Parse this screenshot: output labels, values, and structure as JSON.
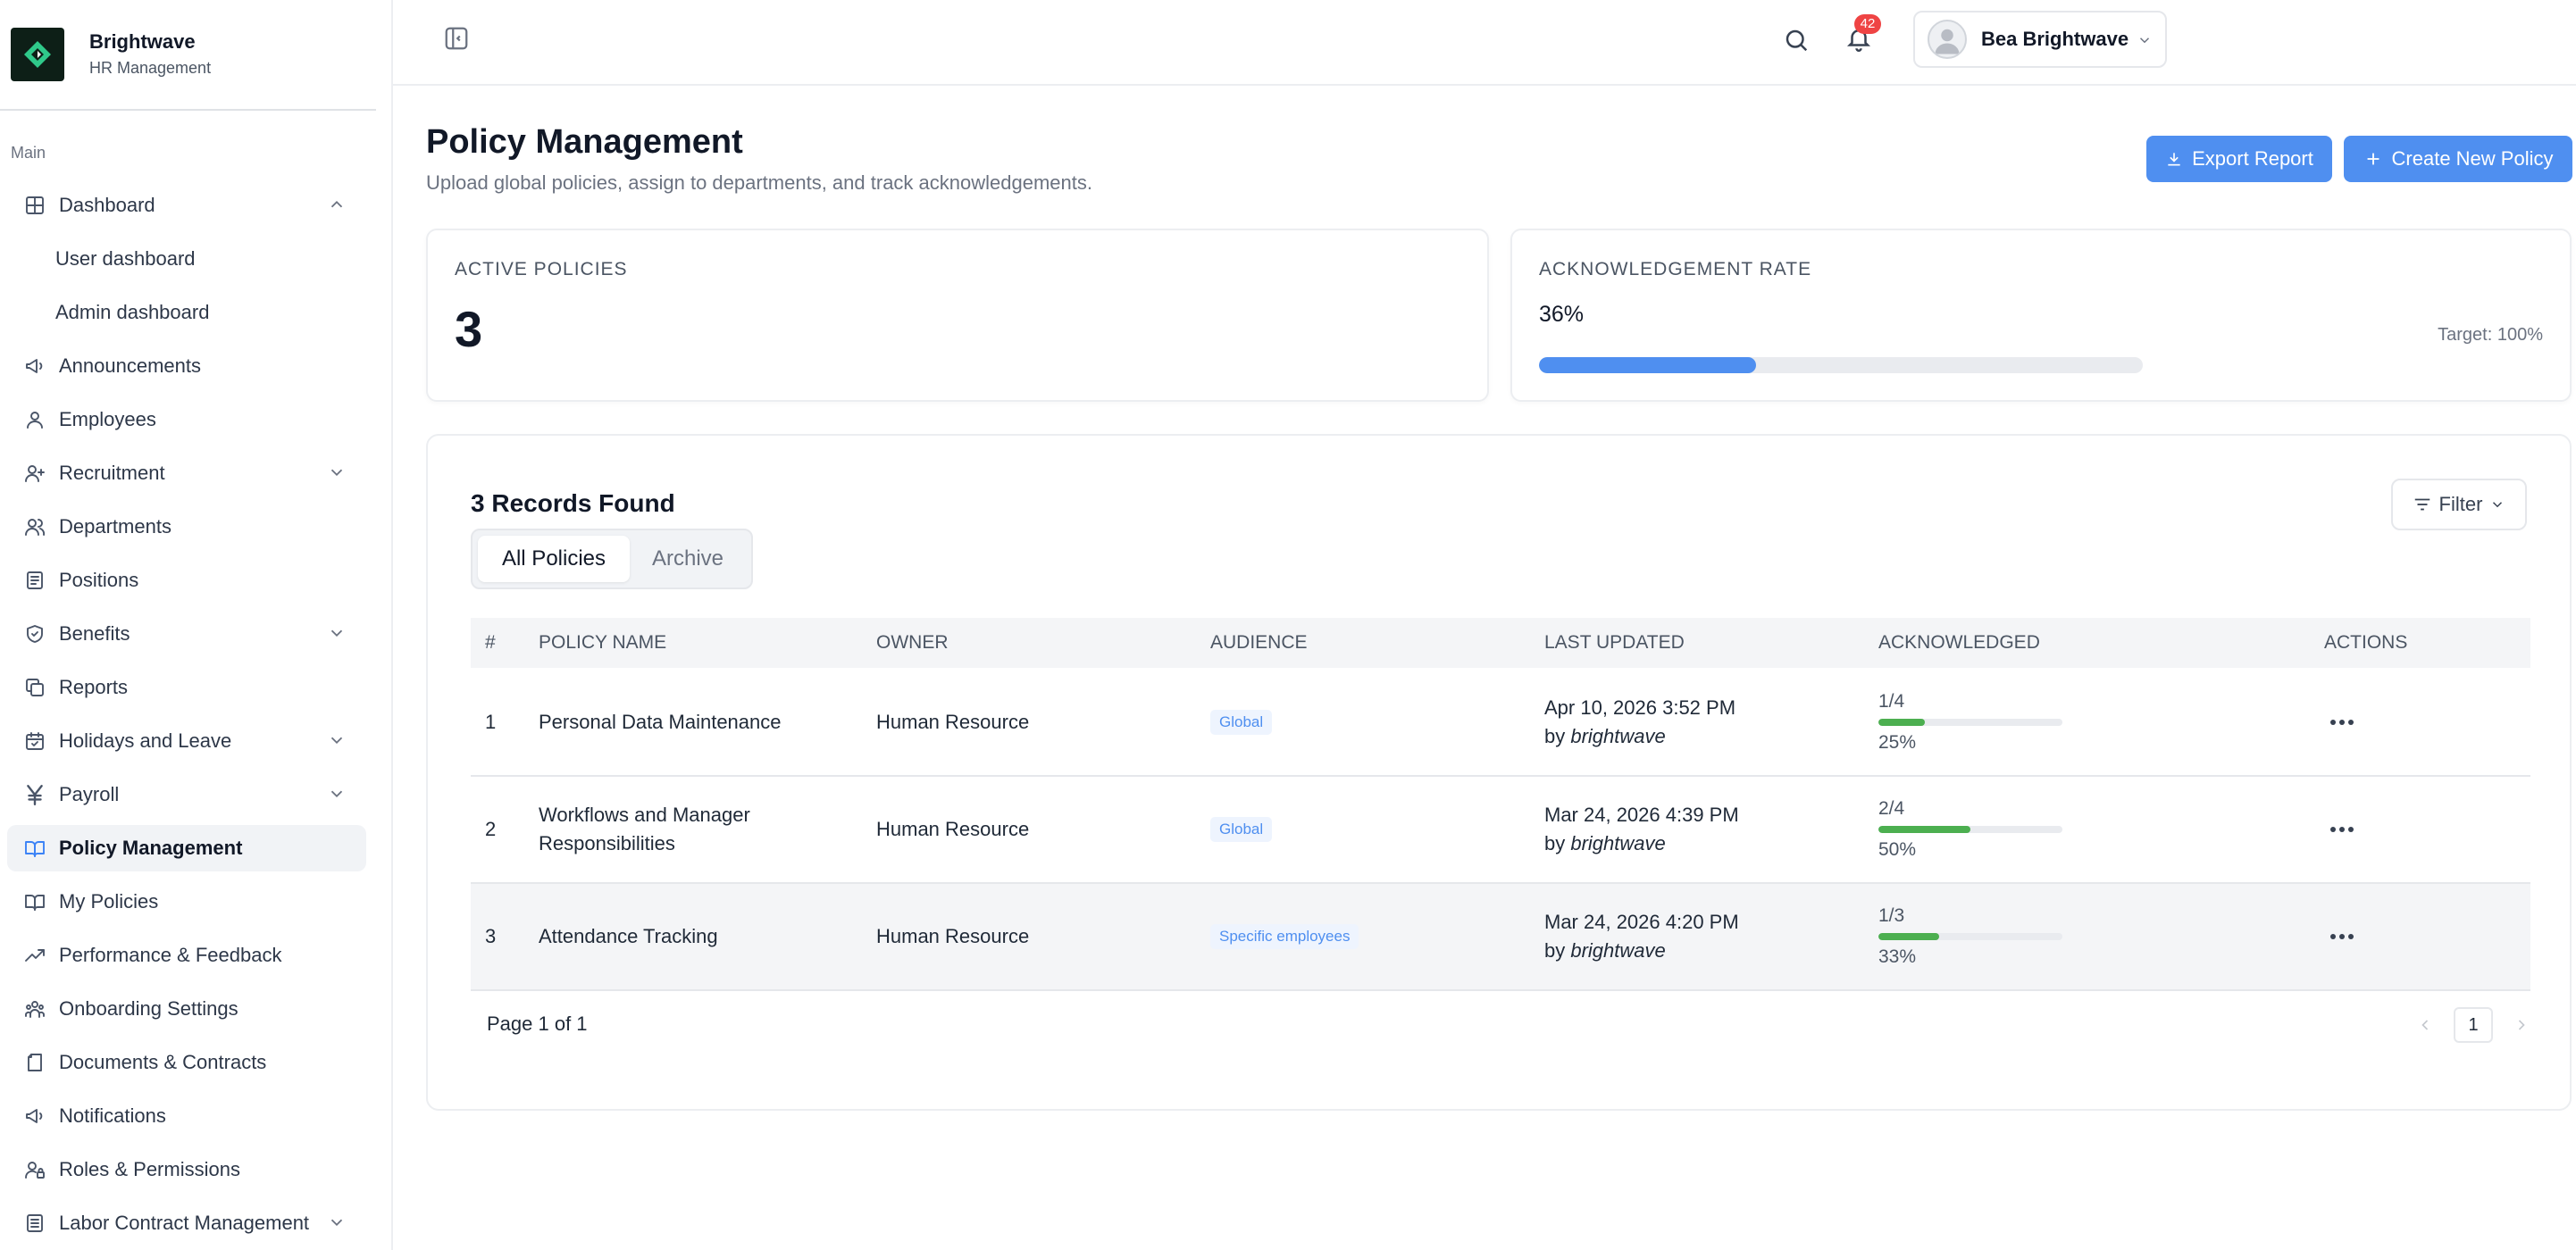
{
  "brand": {
    "name": "Brightwave",
    "subtitle": "HR Management"
  },
  "sidebar": {
    "section_label": "Main",
    "items": [
      {
        "label": "Dashboard",
        "icon": "grid-icon",
        "expandable": true,
        "expanded": true
      },
      {
        "label": "User dashboard",
        "sub": true
      },
      {
        "label": "Admin dashboard",
        "sub": true
      },
      {
        "label": "Announcements",
        "icon": "megaphone-icon"
      },
      {
        "label": "Employees",
        "icon": "user-icon"
      },
      {
        "label": "Recruitment",
        "icon": "user-plus-icon",
        "expandable": true
      },
      {
        "label": "Departments",
        "icon": "users-icon"
      },
      {
        "label": "Positions",
        "icon": "list-icon"
      },
      {
        "label": "Benefits",
        "icon": "shield-icon",
        "expandable": true
      },
      {
        "label": "Reports",
        "icon": "copy-icon"
      },
      {
        "label": "Holidays and Leave",
        "icon": "calendar-icon",
        "expandable": true
      },
      {
        "label": "Payroll",
        "icon": "yen-icon",
        "expandable": true
      },
      {
        "label": "Policy Management",
        "icon": "book-icon",
        "active": true
      },
      {
        "label": "My Policies",
        "icon": "book-icon"
      },
      {
        "label": "Performance & Feedback",
        "icon": "trend-icon"
      },
      {
        "label": "Onboarding Settings",
        "icon": "team-icon"
      },
      {
        "label": "Documents & Contracts",
        "icon": "file-icon"
      },
      {
        "label": "Notifications",
        "icon": "megaphone-icon"
      },
      {
        "label": "Roles & Permissions",
        "icon": "user-lock-icon"
      },
      {
        "label": "Labor Contract Management",
        "icon": "doc-lines-icon",
        "expandable": true
      }
    ]
  },
  "topbar": {
    "notification_count": "42",
    "user_name": "Bea Brightwave"
  },
  "page": {
    "title": "Policy Management",
    "subtitle": "Upload global policies, assign to departments, and track acknowledgements.",
    "export_label": "Export Report",
    "create_label": "Create New Policy"
  },
  "stats": {
    "active_label": "ACTIVE POLICIES",
    "active_value": "3",
    "ack_label": "ACKNOWLEDGEMENT RATE",
    "ack_value": "36%",
    "ack_fraction": 0.36,
    "target_label": "Target: 100%"
  },
  "table": {
    "records_found": "3 Records Found",
    "tabs": [
      "All Policies",
      "Archive"
    ],
    "filter_label": "Filter",
    "headers": [
      "#",
      "POLICY NAME",
      "OWNER",
      "AUDIENCE",
      "LAST UPDATED",
      "ACKNOWLEDGED",
      "ACTIONS"
    ],
    "rows": [
      {
        "num": "1",
        "name": "Personal Data Maintenance",
        "owner": "Human Resource",
        "audience": "Global",
        "updated": "Apr 10, 2026 3:52 PM",
        "by_prefix": "by ",
        "by": "brightwave",
        "ack": "1/4",
        "ack_pct": "25%",
        "ack_fraction": 0.25
      },
      {
        "num": "2",
        "name": "Workflows and Manager Responsibilities",
        "owner": "Human Resource",
        "audience": "Global",
        "updated": "Mar 24, 2026 4:39 PM",
        "by_prefix": "by ",
        "by": "brightwave",
        "ack": "2/4",
        "ack_pct": "50%",
        "ack_fraction": 0.5
      },
      {
        "num": "3",
        "name": "Attendance Tracking",
        "owner": "Human Resource",
        "audience": "Specific employees",
        "updated": "Mar 24, 2026 4:20 PM",
        "by_prefix": "by ",
        "by": "brightwave",
        "ack": "1/3",
        "ack_pct": "33%",
        "ack_fraction": 0.33,
        "highlighted": true
      }
    ],
    "page_info": "Page 1 of 1",
    "current_page": "1"
  },
  "colors": {
    "accent": "#4f8ff0",
    "success": "#4caf50",
    "danger": "#ef4444"
  }
}
